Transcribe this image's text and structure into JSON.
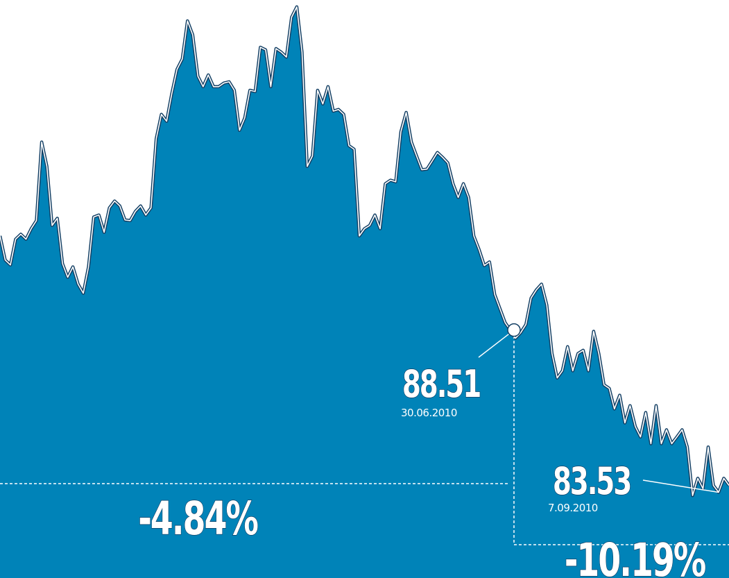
{
  "chart_data": {
    "type": "area",
    "color": "#0083b8",
    "line_color": "#123e63",
    "values": [
      91.4,
      90.66,
      90.51,
      91.3,
      91.45,
      91.3,
      91.62,
      91.87,
      94.28,
      93.53,
      91.72,
      91.94,
      90.55,
      90.13,
      90.45,
      89.92,
      89.64,
      90.45,
      91.98,
      92.04,
      91.51,
      92.26,
      92.47,
      92.32,
      91.89,
      91.87,
      92.15,
      92.32,
      92.04,
      92.26,
      94.38,
      95.13,
      94.92,
      95.77,
      96.51,
      96.83,
      98.0,
      97.57,
      96.3,
      95.98,
      96.34,
      95.98,
      95.98,
      96.09,
      96.13,
      95.87,
      94.64,
      95.02,
      95.87,
      95.83,
      97.19,
      97.11,
      95.98,
      97.15,
      97.04,
      96.89,
      98.11,
      98.43,
      97.04,
      93.53,
      93.85,
      95.87,
      95.45,
      95.98,
      95.23,
      95.28,
      95.13,
      94.17,
      94.06,
      91.4,
      91.62,
      91.72,
      92.04,
      91.62,
      93.0,
      93.11,
      93.06,
      94.6,
      95.19,
      94.28,
      93.85,
      93.43,
      93.45,
      93.7,
      93.96,
      93.81,
      93.64,
      93.0,
      92.58,
      93.0,
      92.58,
      91.4,
      90.98,
      90.49,
      90.6,
      89.6,
      89.17,
      88.74,
      88.51,
      88.26,
      88.43,
      88.68,
      89.49,
      89.74,
      89.92,
      89.28,
      87.79,
      87.04,
      87.26,
      88.0,
      87.26,
      87.79,
      87.89,
      87.26,
      88.47,
      87.79,
      86.83,
      86.72,
      86.09,
      86.51,
      85.66,
      86.19,
      85.55,
      85.23,
      85.98,
      85.02,
      86.19,
      85.02,
      85.45,
      85.02,
      85.23,
      85.45,
      84.92,
      83.43,
      83.96,
      83.64,
      84.92,
      83.74,
      83.53,
      83.96,
      83.74
    ],
    "ylim": [
      80.9,
      98.64
    ],
    "annotations": [
      {
        "value": 88.51,
        "date": "30.06.2010"
      },
      {
        "value": 83.53,
        "date": "7.09.2010"
      }
    ],
    "changes": [
      "-4.84%",
      "-10.19%"
    ]
  }
}
